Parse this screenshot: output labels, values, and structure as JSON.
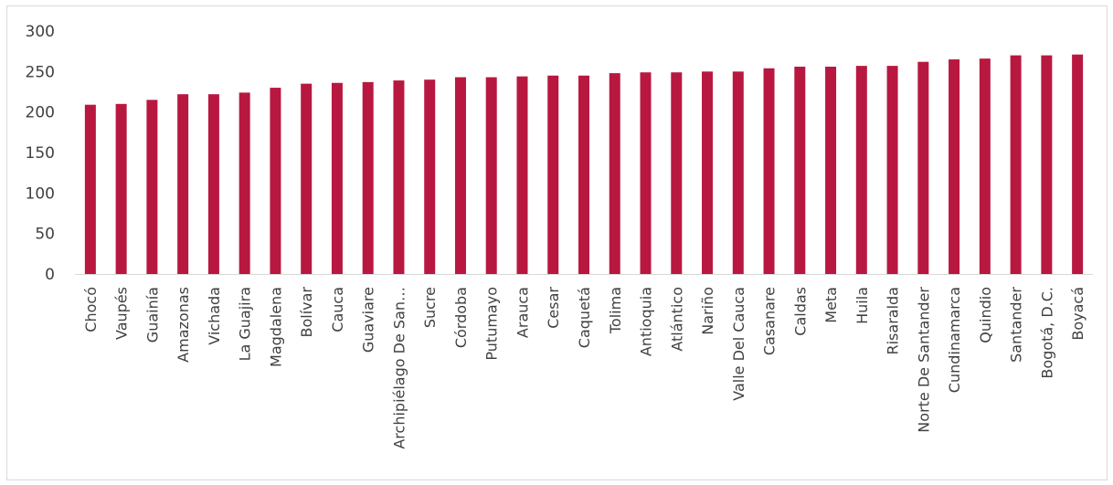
{
  "chart_data": {
    "type": "bar",
    "title": "",
    "xlabel": "",
    "ylabel": "",
    "ylim": [
      0,
      300
    ],
    "yticks": [
      0,
      50,
      100,
      150,
      200,
      250,
      300
    ],
    "grid": false,
    "legend": "none",
    "bar_color": "#b8183f",
    "axis_color": "#d9d9d9",
    "categories": [
      "Chocó",
      "Vaupés",
      "Guainía",
      "Amazonas",
      "Vichada",
      "La Guajira",
      "Magdalena",
      "Bolívar",
      "Cauca",
      "Guaviare",
      "Archipiélago De San…",
      "Sucre",
      "Córdoba",
      "Putumayo",
      "Arauca",
      "Cesar",
      "Caquetá",
      "Tolima",
      "Antioquia",
      "Atlántico",
      "Nariño",
      "Valle Del Cauca",
      "Casanare",
      "Caldas",
      "Meta",
      "Huila",
      "Risaralda",
      "Norte De Santander",
      "Cundinamarca",
      "Quindio",
      "Santander",
      "Bogotá, D.C.",
      "Boyacá"
    ],
    "values": [
      209,
      210,
      215,
      222,
      222,
      224,
      230,
      235,
      236,
      237,
      239,
      240,
      243,
      243,
      244,
      245,
      245,
      248,
      249,
      249,
      250,
      250,
      254,
      256,
      256,
      257,
      257,
      262,
      265,
      266,
      270,
      270,
      271
    ]
  }
}
